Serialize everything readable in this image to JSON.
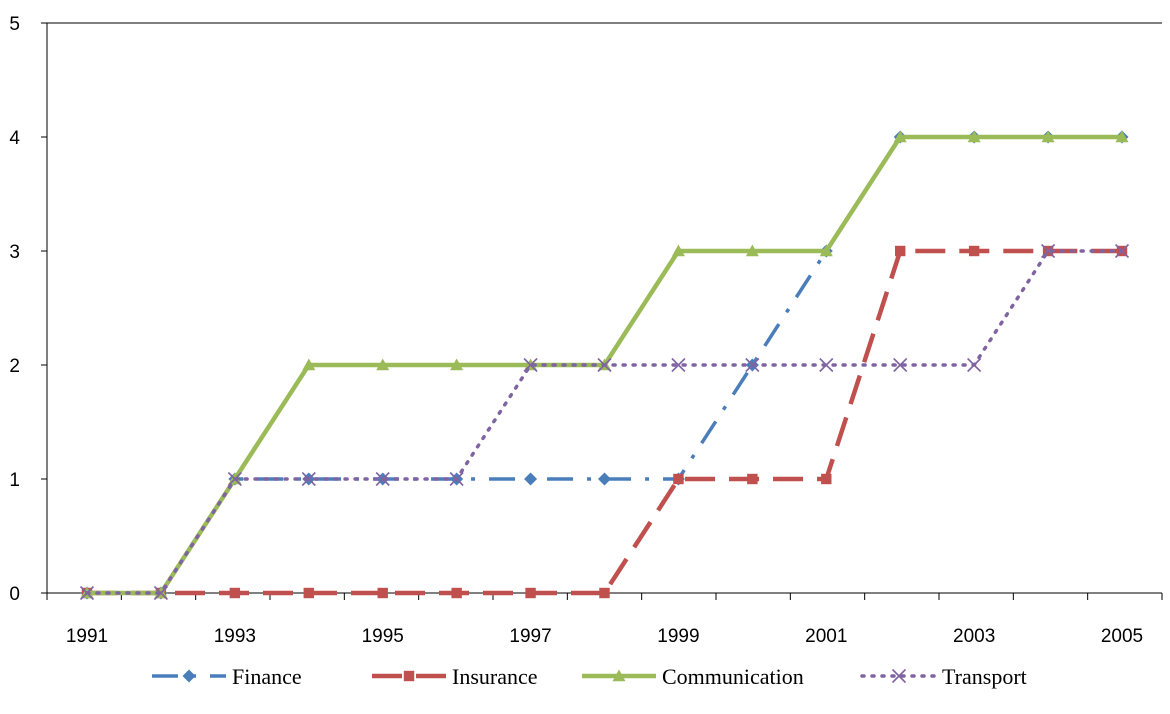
{
  "chart_data": {
    "type": "line",
    "title": "",
    "xlabel": "",
    "ylabel": "",
    "x": [
      1991,
      1992,
      1993,
      1994,
      1995,
      1996,
      1997,
      1998,
      1999,
      2000,
      2001,
      2002,
      2003,
      2004,
      2005
    ],
    "x_tick_labels": [
      "1991",
      "1993",
      "1995",
      "1997",
      "1999",
      "2001",
      "2003",
      "2005"
    ],
    "y_tick_labels": [
      "0",
      "1",
      "2",
      "3",
      "4",
      "5"
    ],
    "ylim": [
      0,
      5
    ],
    "grid": false,
    "legend_position": "bottom",
    "series": [
      {
        "name": "Finance",
        "color": "#4a7ebb",
        "dash": "dash-dot",
        "marker": "diamond",
        "values": [
          0,
          0,
          1,
          1,
          1,
          1,
          1,
          1,
          1,
          2,
          3,
          4,
          4,
          4,
          4
        ]
      },
      {
        "name": "Insurance",
        "color": "#c0504d",
        "dash": "long-dash",
        "marker": "square",
        "values": [
          0,
          0,
          0,
          0,
          0,
          0,
          0,
          0,
          1,
          1,
          1,
          3,
          3,
          3,
          3
        ]
      },
      {
        "name": "Communication",
        "color": "#9bbb59",
        "dash": "solid",
        "marker": "triangle",
        "values": [
          0,
          0,
          1,
          2,
          2,
          2,
          2,
          2,
          3,
          3,
          3,
          4,
          4,
          4,
          4
        ]
      },
      {
        "name": "Transport",
        "color": "#8064a2",
        "dash": "dotted",
        "marker": "x",
        "values": [
          0,
          0,
          1,
          1,
          1,
          1,
          2,
          2,
          2,
          2,
          2,
          2,
          2,
          3,
          3
        ]
      }
    ]
  }
}
